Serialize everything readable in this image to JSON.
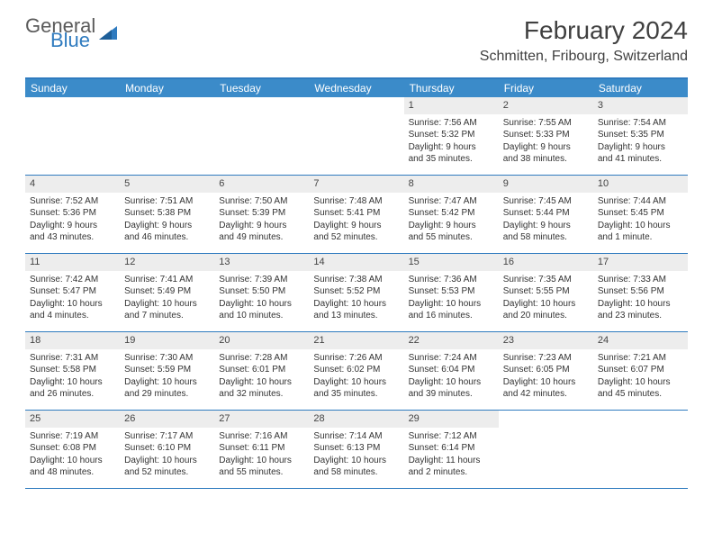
{
  "logo": {
    "word1": "General",
    "word2": "Blue"
  },
  "title": "February 2024",
  "location": "Schmitten, Fribourg, Switzerland",
  "colors": {
    "header_bar": "#3b8bc9",
    "border": "#2f7bbf",
    "daynum_bg": "#ededed",
    "text": "#333333",
    "logo_gray": "#5a5a5a",
    "logo_blue": "#2f7bbf"
  },
  "weekdays": [
    "Sunday",
    "Monday",
    "Tuesday",
    "Wednesday",
    "Thursday",
    "Friday",
    "Saturday"
  ],
  "weeks": [
    [
      null,
      null,
      null,
      null,
      {
        "n": "1",
        "sr": "Sunrise: 7:56 AM",
        "ss": "Sunset: 5:32 PM",
        "dl1": "Daylight: 9 hours",
        "dl2": "and 35 minutes."
      },
      {
        "n": "2",
        "sr": "Sunrise: 7:55 AM",
        "ss": "Sunset: 5:33 PM",
        "dl1": "Daylight: 9 hours",
        "dl2": "and 38 minutes."
      },
      {
        "n": "3",
        "sr": "Sunrise: 7:54 AM",
        "ss": "Sunset: 5:35 PM",
        "dl1": "Daylight: 9 hours",
        "dl2": "and 41 minutes."
      }
    ],
    [
      {
        "n": "4",
        "sr": "Sunrise: 7:52 AM",
        "ss": "Sunset: 5:36 PM",
        "dl1": "Daylight: 9 hours",
        "dl2": "and 43 minutes."
      },
      {
        "n": "5",
        "sr": "Sunrise: 7:51 AM",
        "ss": "Sunset: 5:38 PM",
        "dl1": "Daylight: 9 hours",
        "dl2": "and 46 minutes."
      },
      {
        "n": "6",
        "sr": "Sunrise: 7:50 AM",
        "ss": "Sunset: 5:39 PM",
        "dl1": "Daylight: 9 hours",
        "dl2": "and 49 minutes."
      },
      {
        "n": "7",
        "sr": "Sunrise: 7:48 AM",
        "ss": "Sunset: 5:41 PM",
        "dl1": "Daylight: 9 hours",
        "dl2": "and 52 minutes."
      },
      {
        "n": "8",
        "sr": "Sunrise: 7:47 AM",
        "ss": "Sunset: 5:42 PM",
        "dl1": "Daylight: 9 hours",
        "dl2": "and 55 minutes."
      },
      {
        "n": "9",
        "sr": "Sunrise: 7:45 AM",
        "ss": "Sunset: 5:44 PM",
        "dl1": "Daylight: 9 hours",
        "dl2": "and 58 minutes."
      },
      {
        "n": "10",
        "sr": "Sunrise: 7:44 AM",
        "ss": "Sunset: 5:45 PM",
        "dl1": "Daylight: 10 hours",
        "dl2": "and 1 minute."
      }
    ],
    [
      {
        "n": "11",
        "sr": "Sunrise: 7:42 AM",
        "ss": "Sunset: 5:47 PM",
        "dl1": "Daylight: 10 hours",
        "dl2": "and 4 minutes."
      },
      {
        "n": "12",
        "sr": "Sunrise: 7:41 AM",
        "ss": "Sunset: 5:49 PM",
        "dl1": "Daylight: 10 hours",
        "dl2": "and 7 minutes."
      },
      {
        "n": "13",
        "sr": "Sunrise: 7:39 AM",
        "ss": "Sunset: 5:50 PM",
        "dl1": "Daylight: 10 hours",
        "dl2": "and 10 minutes."
      },
      {
        "n": "14",
        "sr": "Sunrise: 7:38 AM",
        "ss": "Sunset: 5:52 PM",
        "dl1": "Daylight: 10 hours",
        "dl2": "and 13 minutes."
      },
      {
        "n": "15",
        "sr": "Sunrise: 7:36 AM",
        "ss": "Sunset: 5:53 PM",
        "dl1": "Daylight: 10 hours",
        "dl2": "and 16 minutes."
      },
      {
        "n": "16",
        "sr": "Sunrise: 7:35 AM",
        "ss": "Sunset: 5:55 PM",
        "dl1": "Daylight: 10 hours",
        "dl2": "and 20 minutes."
      },
      {
        "n": "17",
        "sr": "Sunrise: 7:33 AM",
        "ss": "Sunset: 5:56 PM",
        "dl1": "Daylight: 10 hours",
        "dl2": "and 23 minutes."
      }
    ],
    [
      {
        "n": "18",
        "sr": "Sunrise: 7:31 AM",
        "ss": "Sunset: 5:58 PM",
        "dl1": "Daylight: 10 hours",
        "dl2": "and 26 minutes."
      },
      {
        "n": "19",
        "sr": "Sunrise: 7:30 AM",
        "ss": "Sunset: 5:59 PM",
        "dl1": "Daylight: 10 hours",
        "dl2": "and 29 minutes."
      },
      {
        "n": "20",
        "sr": "Sunrise: 7:28 AM",
        "ss": "Sunset: 6:01 PM",
        "dl1": "Daylight: 10 hours",
        "dl2": "and 32 minutes."
      },
      {
        "n": "21",
        "sr": "Sunrise: 7:26 AM",
        "ss": "Sunset: 6:02 PM",
        "dl1": "Daylight: 10 hours",
        "dl2": "and 35 minutes."
      },
      {
        "n": "22",
        "sr": "Sunrise: 7:24 AM",
        "ss": "Sunset: 6:04 PM",
        "dl1": "Daylight: 10 hours",
        "dl2": "and 39 minutes."
      },
      {
        "n": "23",
        "sr": "Sunrise: 7:23 AM",
        "ss": "Sunset: 6:05 PM",
        "dl1": "Daylight: 10 hours",
        "dl2": "and 42 minutes."
      },
      {
        "n": "24",
        "sr": "Sunrise: 7:21 AM",
        "ss": "Sunset: 6:07 PM",
        "dl1": "Daylight: 10 hours",
        "dl2": "and 45 minutes."
      }
    ],
    [
      {
        "n": "25",
        "sr": "Sunrise: 7:19 AM",
        "ss": "Sunset: 6:08 PM",
        "dl1": "Daylight: 10 hours",
        "dl2": "and 48 minutes."
      },
      {
        "n": "26",
        "sr": "Sunrise: 7:17 AM",
        "ss": "Sunset: 6:10 PM",
        "dl1": "Daylight: 10 hours",
        "dl2": "and 52 minutes."
      },
      {
        "n": "27",
        "sr": "Sunrise: 7:16 AM",
        "ss": "Sunset: 6:11 PM",
        "dl1": "Daylight: 10 hours",
        "dl2": "and 55 minutes."
      },
      {
        "n": "28",
        "sr": "Sunrise: 7:14 AM",
        "ss": "Sunset: 6:13 PM",
        "dl1": "Daylight: 10 hours",
        "dl2": "and 58 minutes."
      },
      {
        "n": "29",
        "sr": "Sunrise: 7:12 AM",
        "ss": "Sunset: 6:14 PM",
        "dl1": "Daylight: 11 hours",
        "dl2": "and 2 minutes."
      },
      null,
      null
    ]
  ]
}
